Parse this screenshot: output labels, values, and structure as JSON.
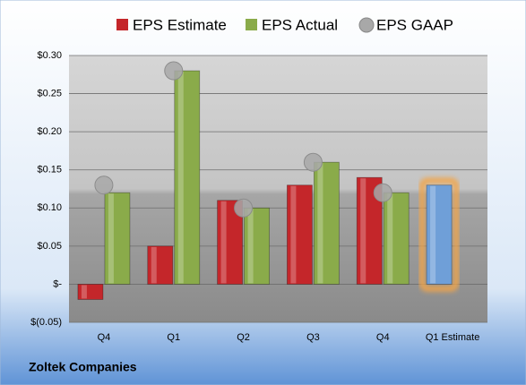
{
  "chart_data": {
    "type": "bar",
    "subtitle": "Zoltek Companies",
    "categories": [
      "Q4",
      "Q1",
      "Q2",
      "Q3",
      "Q4",
      "Q1 Estimate"
    ],
    "series": [
      {
        "name": "EPS Estimate",
        "color": "#c4262a",
        "values": [
          -0.02,
          0.05,
          0.11,
          0.13,
          0.14,
          0.13
        ],
        "colors": [
          "#c4262a",
          "#c4262a",
          "#c4262a",
          "#c4262a",
          "#c4262a",
          "#6f9fd8"
        ]
      },
      {
        "name": "EPS Actual",
        "color": "#8aab4a",
        "values": [
          0.12,
          0.28,
          0.1,
          0.16,
          0.12,
          null
        ]
      },
      {
        "name": "EPS GAAP",
        "color": "#a8a8a8",
        "values": [
          0.13,
          0.28,
          0.1,
          0.16,
          0.12,
          null
        ]
      }
    ],
    "ylim": [
      -0.05,
      0.3
    ],
    "yticks": [
      {
        "value": -0.05,
        "label": "$(0.05)"
      },
      {
        "value": 0,
        "label": "$-"
      },
      {
        "value": 0.05,
        "label": "$0.05"
      },
      {
        "value": 0.1,
        "label": "$0.10"
      },
      {
        "value": 0.15,
        "label": "$0.15"
      },
      {
        "value": 0.2,
        "label": "$0.20"
      },
      {
        "value": 0.25,
        "label": "$0.25"
      },
      {
        "value": 0.3,
        "label": "$0.30"
      }
    ],
    "grid": true
  }
}
